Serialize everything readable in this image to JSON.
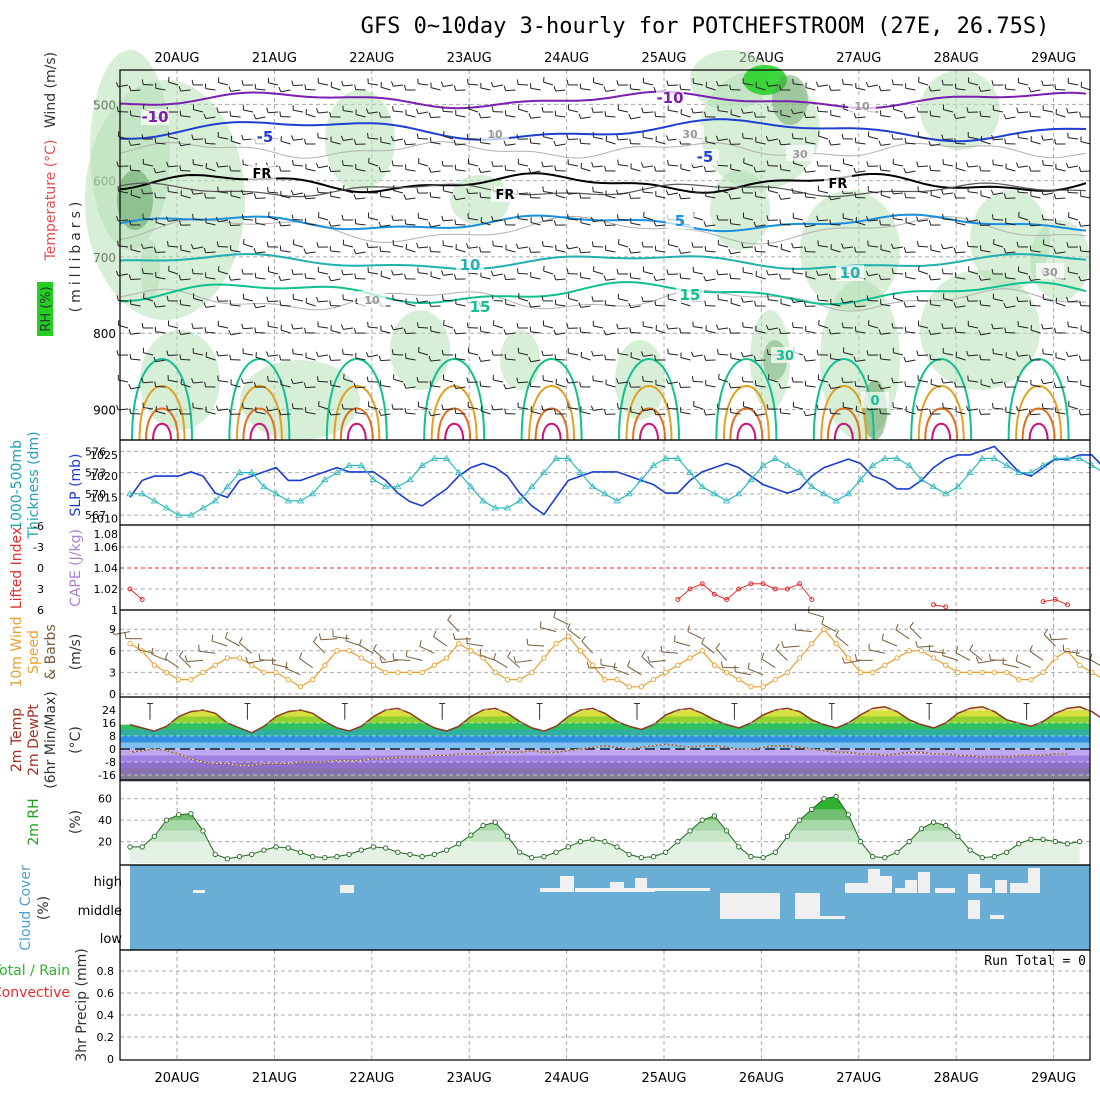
{
  "title": "GFS 0~10day 3-hourly for POTCHEFSTROOM (27E, 26.75S)",
  "date_labels": [
    "20AUG",
    "21AUG",
    "22AUG",
    "23AUG",
    "24AUG",
    "25AUG",
    "26AUG",
    "27AUG",
    "28AUG",
    "29AUG"
  ],
  "colors": {
    "grid": "#aaaaaa",
    "rh_fill": "#b7e0b7",
    "rh_dark": "#5a9a5a",
    "rh_bright": "#22d022",
    "temp_m10": "#7a1fb0",
    "temp_m5": "#1f3fd0",
    "temp_fr": "#000000",
    "temp_5": "#1a8fe0",
    "temp_10": "#20b0b0",
    "temp_15": "#10c090",
    "temp_20": "#e0a020",
    "temp_25": "#e07020",
    "temp_30": "#d0107a",
    "slp": "#1a3cd0",
    "thickness": "#30b8c0",
    "li": "#e03030",
    "cape": "#b080d0",
    "wind": "#e8a030",
    "barb": "#7a5a3a",
    "rh2m": "#20a020",
    "cloud": "#6aaed6",
    "cloud_white": "#f0f0f0",
    "precip_green": "#30b030",
    "precip_red": "#e03030"
  },
  "panels": {
    "upper": {
      "ylabel_wind": "Wind (m/s)",
      "ylabel_temp": "Temperature (°C)",
      "ylabel_rh": "RH (%)",
      "ylabel_unit": "(millibars)",
      "yticks": [
        "500",
        "600",
        "700",
        "800",
        "900"
      ],
      "contour_labels": [
        "-10",
        "-10",
        "-5",
        "-5",
        "FR",
        "FR",
        "FR",
        "5",
        "10",
        "10",
        "15",
        "15",
        "10",
        "30",
        "30",
        "30",
        "10",
        "10",
        "0",
        "30"
      ]
    },
    "thickness": {
      "ylabel_left": "1000-500mb",
      "ylabel_left2": "Thickness (dm)",
      "ylabel_right": "SLP (mb)",
      "yticks_left": [
        "576",
        "573",
        "570",
        "567"
      ],
      "yticks_right": [
        "1025",
        "1020",
        "1015",
        "1010"
      ]
    },
    "stability": {
      "ylabel_left": "Lifted Index",
      "ylabel_right": "CAPE (J/kg)",
      "yticks_left": [
        "-6",
        "-3",
        "0",
        "3",
        "6"
      ],
      "yticks_right": [
        "1.06",
        "1.04",
        "1.02",
        "1"
      ],
      "yticks_right_top": "1.08"
    },
    "wind10m": {
      "ylabel1": "10m Wind",
      "ylabel2": "Speed",
      "ylabel3": "& Barbs",
      "ylabel_unit": "(m/s)",
      "yticks": [
        "9",
        "6",
        "3",
        "0"
      ]
    },
    "temp2m": {
      "ylabel1": "2m Temp",
      "ylabel2": "2m DewPt",
      "ylabel3": "(6hr Min/Max)",
      "ylabel_unit": "(°C)",
      "yticks": [
        "24",
        "16",
        "8",
        "0",
        "-8",
        "-16"
      ]
    },
    "rh2m": {
      "ylabel1": "2m RH",
      "ylabel_unit": "(%)",
      "yticks": [
        "60",
        "40",
        "20"
      ]
    },
    "cloud": {
      "ylabel1": "Cloud Cover",
      "ylabel_unit": "(%)",
      "levels": [
        "high",
        "middle",
        "low"
      ]
    },
    "precip": {
      "ylabel_total": "Total / Rain",
      "ylabel_conv": "Convective",
      "ylabel_main": "3hr Precip (mm)",
      "yticks": [
        "0.8",
        "0.6",
        "0.4",
        "0.2",
        "0"
      ],
      "run_total": "Run Total = 0"
    }
  },
  "chart_data": {
    "type": "line",
    "title": "GFS 0~10day 3-hourly for POTCHEFSTROOM (27E, 26.75S)",
    "x_start": "19AUG 12Z",
    "x_step_hours": 3,
    "series": [
      {
        "name": "SLP (mb)",
        "ylim": [
          1010,
          1028
        ],
        "values": [
          1015,
          1019,
          1020,
          1020,
          1020,
          1021,
          1020,
          1016,
          1015,
          1019,
          1020,
          1021,
          1022,
          1019,
          1019,
          1020,
          1021,
          1022,
          1021,
          1021,
          1021,
          1019,
          1016,
          1014,
          1013,
          1015,
          1017,
          1020,
          1022,
          1023,
          1022,
          1020,
          1016,
          1013,
          1011,
          1015,
          1019,
          1020,
          1021,
          1021,
          1021,
          1020,
          1019,
          1018,
          1016,
          1016,
          1019,
          1021,
          1022,
          1023,
          1022,
          1020,
          1018,
          1017,
          1016,
          1017,
          1020,
          1022,
          1023,
          1024,
          1023,
          1020,
          1019,
          1017,
          1017,
          1019,
          1022,
          1024,
          1025,
          1025,
          1026,
          1027,
          1024,
          1021,
          1020,
          1022,
          1024,
          1024,
          1025,
          1025,
          1022,
          1021,
          1021,
          1022,
          1023
        ]
      },
      {
        "name": "1000-500mb Thickness (dm)",
        "ylim": [
          566,
          578
        ],
        "values": [
          570,
          570,
          569,
          568,
          567,
          567,
          568,
          569,
          571,
          573,
          573,
          571,
          570,
          569,
          569,
          570,
          572,
          573,
          574,
          574,
          572,
          571,
          571,
          572,
          574,
          575,
          575,
          573,
          571,
          569,
          568,
          568,
          569,
          571,
          573,
          575,
          575,
          573,
          571,
          570,
          569,
          570,
          572,
          574,
          575,
          575,
          573,
          571,
          570,
          569,
          570,
          572,
          574,
          575,
          574,
          573,
          571,
          570,
          569,
          570,
          572,
          574,
          575,
          575,
          574,
          572,
          571,
          570,
          571,
          573,
          575,
          575,
          574,
          573,
          573,
          574,
          575,
          575,
          575,
          574,
          573,
          573,
          573,
          573
        ]
      },
      {
        "name": "CAPE (J/kg)",
        "ylim": [
          1,
          1.08
        ],
        "values": [
          1.02,
          1.01,
          null,
          null,
          null,
          null,
          null,
          null,
          null,
          null,
          null,
          null,
          null,
          null,
          null,
          null,
          null,
          null,
          null,
          null,
          null,
          null,
          null,
          null,
          null,
          null,
          null,
          null,
          null,
          null,
          null,
          null,
          null,
          null,
          null,
          null,
          null,
          null,
          null,
          null,
          null,
          null,
          null,
          null,
          null,
          1.01,
          1.02,
          1.025,
          1.015,
          1.01,
          1.02,
          1.025,
          1.025,
          1.02,
          1.02,
          1.025,
          1.01,
          null,
          null,
          null,
          null,
          null,
          null,
          null,
          null,
          null,
          1.005,
          1.003,
          null,
          null,
          null,
          null,
          null,
          null,
          null,
          1.008,
          1.01,
          1.005
        ]
      },
      {
        "name": "10m Wind Speed (m/s)",
        "ylim": [
          0,
          10
        ],
        "values": [
          7,
          6,
          4,
          3,
          2,
          2,
          3,
          4,
          5,
          5,
          4,
          3,
          3,
          2,
          1,
          2,
          4,
          6,
          6,
          5,
          4,
          3,
          3,
          3,
          3,
          4,
          5,
          7,
          6,
          5,
          3,
          2,
          2,
          3,
          5,
          7,
          8,
          6,
          4,
          2,
          2,
          1,
          1,
          2,
          3,
          4,
          5,
          6,
          4,
          3,
          2,
          1,
          1,
          2,
          3,
          5,
          7,
          9,
          7,
          5,
          3,
          3,
          4,
          5,
          6,
          6,
          5,
          4,
          3,
          3,
          3,
          3,
          3,
          2,
          2,
          3,
          5,
          6,
          4,
          3,
          2,
          3,
          4,
          5,
          6
        ]
      },
      {
        "name": "2m Temp (°C)",
        "ylim": [
          -20,
          32
        ],
        "values": [
          15,
          13,
          11,
          14,
          20,
          23,
          24,
          22,
          16,
          13,
          10,
          14,
          20,
          23,
          24,
          22,
          17,
          13,
          11,
          14,
          20,
          24,
          25,
          22,
          17,
          13,
          11,
          14,
          20,
          24,
          25,
          22,
          17,
          13,
          11,
          14,
          20,
          24,
          25,
          22,
          17,
          14,
          12,
          15,
          21,
          24,
          25,
          22,
          18,
          15,
          13,
          16,
          21,
          24,
          25,
          23,
          18,
          15,
          13,
          16,
          21,
          25,
          26,
          23,
          18,
          15,
          13,
          16,
          22,
          25,
          26,
          23,
          18,
          16,
          14,
          17,
          22,
          25,
          26,
          23,
          18,
          16,
          15,
          16,
          18
        ]
      },
      {
        "name": "2m DewPt (°C)",
        "ylim": [
          -20,
          32
        ],
        "values": [
          -2,
          -1,
          0,
          -1,
          -3,
          -6,
          -8,
          -9,
          -9,
          -10,
          -10,
          -9,
          -9,
          -9,
          -8,
          -8,
          -8,
          -7,
          -7,
          -7,
          -6,
          -6,
          -5,
          -5,
          -5,
          -4,
          -4,
          -3,
          -3,
          -3,
          -2,
          -2,
          -2,
          -1,
          -2,
          -2,
          -1,
          0,
          1,
          2,
          1,
          0,
          1,
          2,
          3,
          2,
          1,
          2,
          2,
          1,
          0,
          0,
          1,
          2,
          2,
          1,
          0,
          -1,
          -2,
          -2,
          -3,
          -3,
          -4,
          -3,
          -2,
          -2,
          -3,
          -3,
          -4,
          -4,
          -5,
          -5,
          -5,
          -4,
          -4,
          -4,
          -3,
          -3
        ]
      },
      {
        "name": "2m RH (%)",
        "ylim": [
          0,
          70
        ],
        "values": [
          15,
          15,
          25,
          40,
          45,
          46,
          30,
          8,
          4,
          6,
          8,
          12,
          15,
          14,
          10,
          6,
          5,
          6,
          8,
          12,
          15,
          14,
          10,
          8,
          6,
          8,
          12,
          18,
          26,
          35,
          38,
          25,
          10,
          5,
          6,
          10,
          15,
          20,
          22,
          20,
          15,
          8,
          5,
          6,
          10,
          20,
          30,
          40,
          44,
          30,
          15,
          6,
          5,
          10,
          25,
          40,
          50,
          60,
          62,
          45,
          20,
          6,
          5,
          10,
          20,
          32,
          38,
          35,
          25,
          12,
          5,
          6,
          10,
          18,
          22,
          22,
          20,
          18,
          20
        ]
      }
    ]
  }
}
